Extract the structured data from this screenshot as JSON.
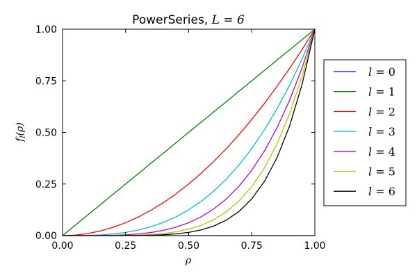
{
  "chart_data": {
    "type": "line",
    "title": "PowerSeries, L = 6",
    "title_prefix": "PowerSeries, ",
    "title_math": "L = 6",
    "xlabel": "ρ",
    "ylabel": "f_l(ρ)",
    "ylabel_main": "f",
    "ylabel_sub": "l",
    "ylabel_arg": "(ρ)",
    "xlim": [
      0.0,
      1.0
    ],
    "ylim": [
      0.0,
      1.0
    ],
    "xticks": [
      "0.00",
      "0.25",
      "0.50",
      "0.75",
      "1.00"
    ],
    "yticks": [
      "0.00",
      "0.25",
      "0.50",
      "0.75",
      "1.00"
    ],
    "grid": false,
    "legend_position": "outside-right",
    "x": [
      0.0,
      0.05,
      0.1,
      0.15,
      0.2,
      0.25,
      0.3,
      0.35,
      0.4,
      0.45,
      0.5,
      0.55,
      0.6,
      0.65,
      0.7,
      0.75,
      0.8,
      0.85,
      0.9,
      0.95,
      1.0
    ],
    "series": [
      {
        "name": "l = 0",
        "color": "#0000ff",
        "values": [
          0.0,
          0.0,
          0.0,
          0.0,
          0.0,
          0.0,
          0.0,
          0.0,
          0.0,
          0.0,
          0.0,
          0.0,
          0.0,
          0.0,
          0.0,
          0.0,
          0.0,
          0.0,
          0.0,
          0.0,
          0.0
        ]
      },
      {
        "name": "l = 1",
        "color": "#008000",
        "values": [
          0.0,
          0.05,
          0.1,
          0.15,
          0.2,
          0.25,
          0.3,
          0.35,
          0.4,
          0.45,
          0.5,
          0.55,
          0.6,
          0.65,
          0.7,
          0.75,
          0.8,
          0.85,
          0.9,
          0.95,
          1.0
        ]
      },
      {
        "name": "l = 2",
        "color": "#ff0000",
        "values": [
          0.0,
          0.0025,
          0.01,
          0.0225,
          0.04,
          0.0625,
          0.09,
          0.1225,
          0.16,
          0.2025,
          0.25,
          0.3025,
          0.36,
          0.4225,
          0.49,
          0.5625,
          0.64,
          0.7225,
          0.81,
          0.9025,
          1.0
        ]
      },
      {
        "name": "l = 3",
        "color": "#00bfbf",
        "values": [
          0.0,
          0.0001,
          0.001,
          0.0034,
          0.008,
          0.0156,
          0.027,
          0.0429,
          0.064,
          0.0911,
          0.125,
          0.1664,
          0.216,
          0.2746,
          0.343,
          0.4219,
          0.512,
          0.6141,
          0.729,
          0.8574,
          1.0
        ]
      },
      {
        "name": "l = 4",
        "color": "#bf00bf",
        "values": [
          0.0,
          0.0,
          0.0001,
          0.0005,
          0.0016,
          0.0039,
          0.0081,
          0.015,
          0.0256,
          0.041,
          0.0625,
          0.0915,
          0.1296,
          0.1785,
          0.2401,
          0.3164,
          0.4096,
          0.522,
          0.6561,
          0.8145,
          1.0
        ]
      },
      {
        "name": "l = 5",
        "color": "#bfbf00",
        "values": [
          0.0,
          0.0,
          0.0,
          0.0001,
          0.0003,
          0.001,
          0.0024,
          0.0053,
          0.0102,
          0.0185,
          0.0313,
          0.0503,
          0.0778,
          0.116,
          0.1681,
          0.2373,
          0.3277,
          0.4437,
          0.5905,
          0.7738,
          1.0
        ]
      },
      {
        "name": "l = 6",
        "color": "#000000",
        "values": [
          0.0,
          0.0,
          0.0,
          0.0,
          0.0001,
          0.0002,
          0.0007,
          0.0018,
          0.0041,
          0.0083,
          0.0156,
          0.0277,
          0.0467,
          0.0754,
          0.1176,
          0.178,
          0.2621,
          0.3771,
          0.5314,
          0.7351,
          1.0
        ]
      }
    ],
    "legend_labels": [
      {
        "var": "l",
        "value": "0"
      },
      {
        "var": "l",
        "value": "1"
      },
      {
        "var": "l",
        "value": "2"
      },
      {
        "var": "l",
        "value": "3"
      },
      {
        "var": "l",
        "value": "4"
      },
      {
        "var": "l",
        "value": "5"
      },
      {
        "var": "l",
        "value": "6"
      }
    ]
  }
}
